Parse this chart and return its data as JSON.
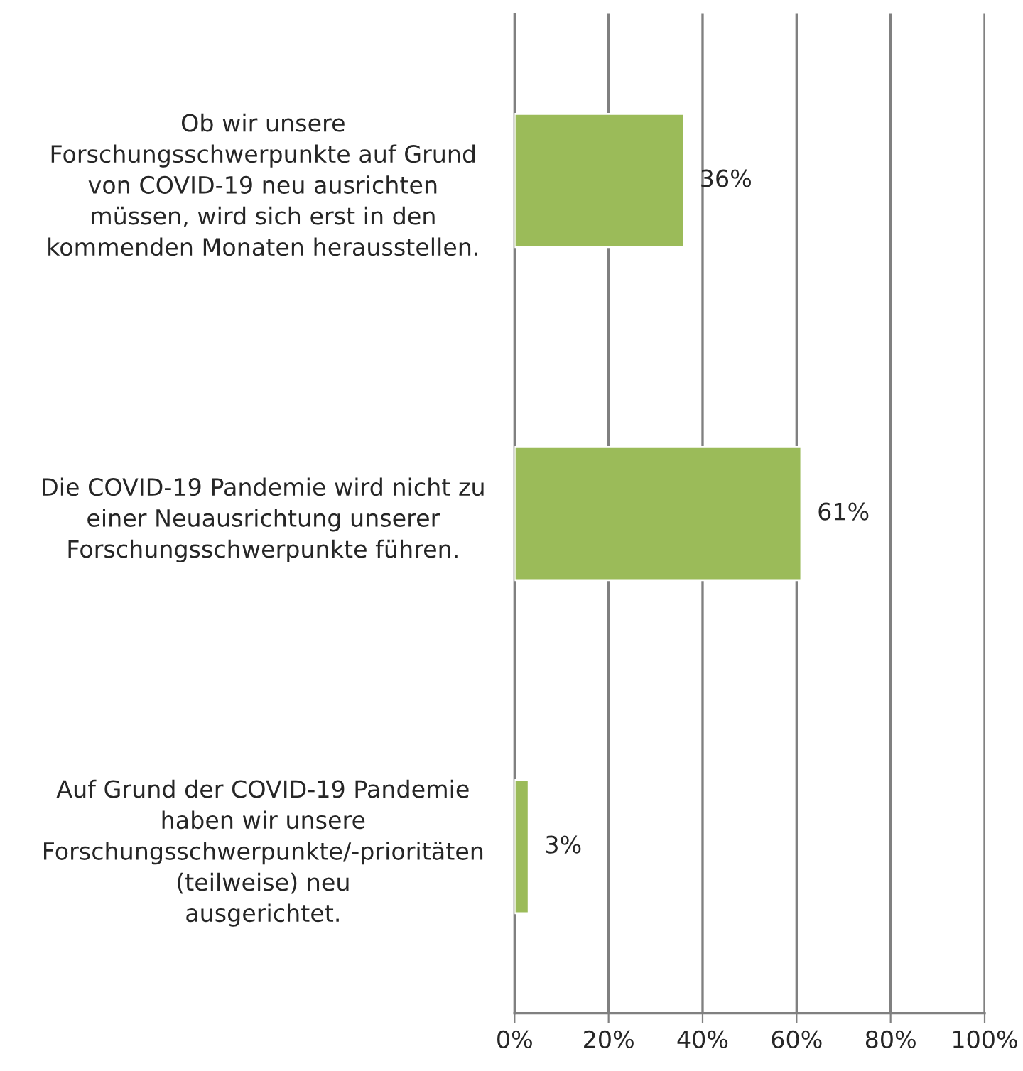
{
  "chart_data": {
    "type": "bar",
    "orientation": "horizontal",
    "categories": [
      "Ob wir unsere\nForschungsschwerpunkte auf Grund\nvon COVID-19 neu ausrichten\nmüssen, wird sich erst in den\nkommenden Monaten herausstellen.",
      "Die COVID-19 Pandemie wird nicht zu\neiner Neuausrichtung unserer\nForschungsschwerpunkte führen.",
      "Auf Grund der COVID-19 Pandemie\nhaben wir unsere\nForschungsschwerpunkte/-prioritäten\n(teilweise) neu\nausgerichtet."
    ],
    "values": [
      36,
      61,
      3
    ],
    "value_labels": [
      "36%",
      "61%",
      "3%"
    ],
    "color": "#9bbb59",
    "xlim": [
      0,
      100
    ],
    "xticks": [
      {
        "value": 0,
        "label": "0%"
      },
      {
        "value": 20,
        "label": "20%"
      },
      {
        "value": 40,
        "label": "40%"
      },
      {
        "value": 60,
        "label": "60%"
      },
      {
        "value": 80,
        "label": "80%"
      },
      {
        "value": 100,
        "label": "100%"
      }
    ],
    "grid": "x",
    "legend": false
  }
}
